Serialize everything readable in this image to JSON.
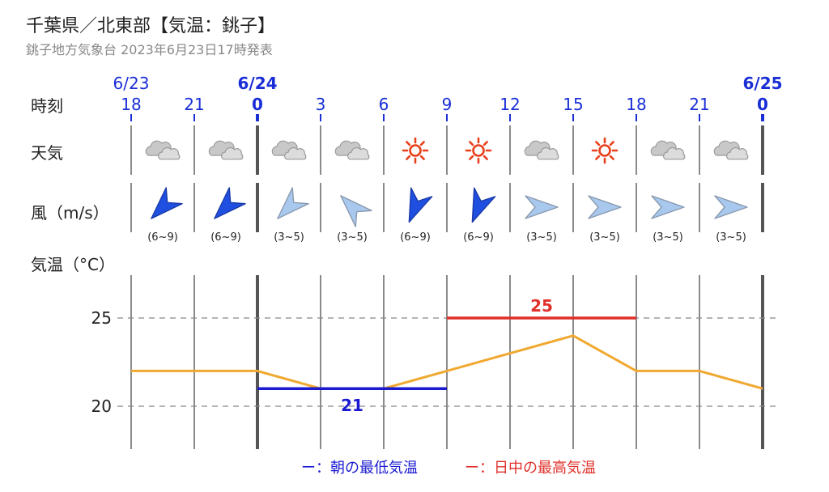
{
  "header": {
    "title": "千葉県／北東部【気温：銚子】",
    "subtitle": "銚子地方気象台 2023年6月23日17時発表"
  },
  "row_labels": {
    "time": "時刻",
    "weather": "天気",
    "wind": "風（m/s）",
    "temp": "気温（°C）"
  },
  "dates": [
    {
      "label": "6/23",
      "col": 0,
      "bold": false
    },
    {
      "label": "6/24",
      "col": 2,
      "bold": true
    },
    {
      "label": "6/25",
      "col": 10,
      "bold": true
    }
  ],
  "hours": [
    "18",
    "21",
    "0",
    "3",
    "6",
    "9",
    "12",
    "15",
    "18",
    "21",
    "0"
  ],
  "weather": [
    "cloudy",
    "cloudy",
    "cloudy",
    "cloudy",
    "sunny",
    "sunny",
    "cloudy",
    "sunny",
    "cloudy",
    "cloudy"
  ],
  "wind": [
    {
      "dir": "SW",
      "speed": "(6~9)",
      "strong": true
    },
    {
      "dir": "SW",
      "speed": "(6~9)",
      "strong": true
    },
    {
      "dir": "SW",
      "speed": "(3~5)",
      "strong": false
    },
    {
      "dir": "NW",
      "speed": "(3~5)",
      "strong": false
    },
    {
      "dir": "SSW",
      "speed": "(6~9)",
      "strong": true
    },
    {
      "dir": "SSW",
      "speed": "(6~9)",
      "strong": true
    },
    {
      "dir": "E",
      "speed": "(3~5)",
      "strong": false
    },
    {
      "dir": "E",
      "speed": "(3~5)",
      "strong": false
    },
    {
      "dir": "E",
      "speed": "(3~5)",
      "strong": false
    },
    {
      "dir": "E",
      "speed": "(3~5)",
      "strong": false
    }
  ],
  "legend": {
    "min_label": "ー：朝の最低気温",
    "max_label": "ー：日中の最高気温"
  },
  "colors": {
    "date_blue": "#1a2ed6",
    "temp_line": "#f0a830",
    "min_line": "#1a1ad0",
    "max_line": "#e0302a",
    "sun": "#e8401c",
    "arrow_strong": "#1f4fe0",
    "arrow_weak": "#a8c8ee"
  },
  "chart_data": {
    "type": "line",
    "x": [
      "18",
      "21",
      "0",
      "3",
      "6",
      "9",
      "12",
      "15",
      "18",
      "21",
      "0"
    ],
    "series": [
      {
        "values": [
          22,
          22,
          22,
          21,
          21,
          22,
          23,
          24,
          22,
          22,
          21
        ]
      }
    ],
    "min_temp": {
      "value": 21,
      "label": "21",
      "from_col": 2,
      "to_col": 5
    },
    "max_temp": {
      "value": 25,
      "label": "25",
      "from_col": 5,
      "to_col": 8
    },
    "yticks": [
      "25",
      "20"
    ],
    "ylim": [
      18,
      27
    ],
    "grid": true
  }
}
